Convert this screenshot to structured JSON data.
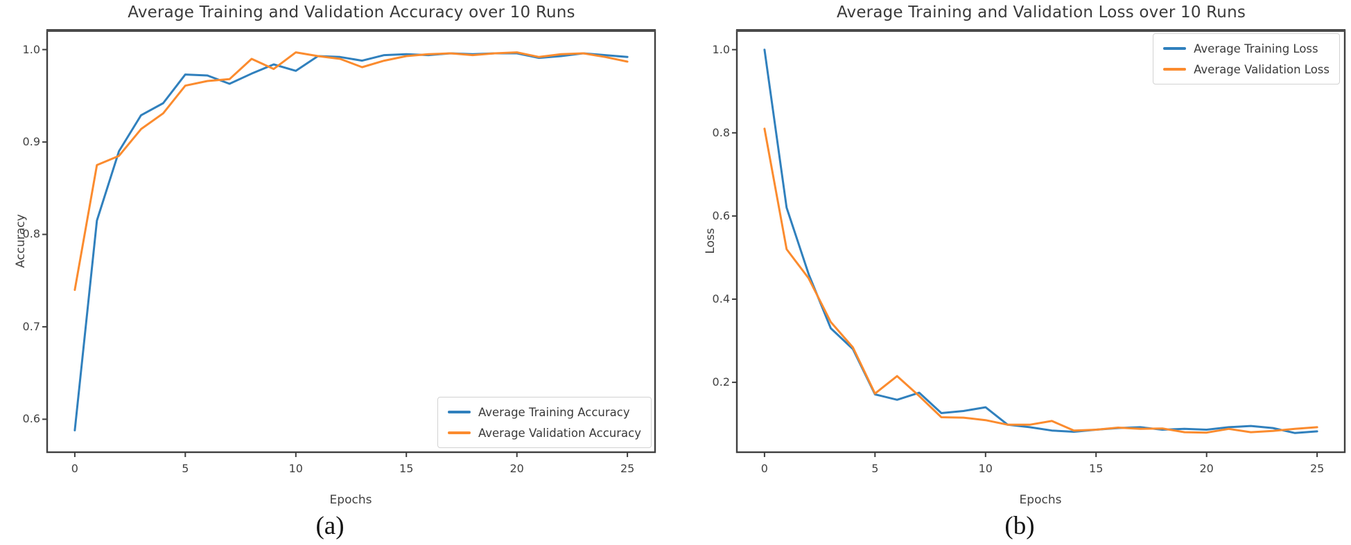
{
  "colors": {
    "training": "#3080bd",
    "validation": "#fb8b2e",
    "spine": "#3f3f3f",
    "spine_top": "#4a4a4a",
    "tick": "#3f3f3f"
  },
  "chart_data": [
    {
      "id": "accuracy",
      "type": "line",
      "title": "Average Training and Validation Accuracy over 10 Runs",
      "xlabel": "Epochs",
      "ylabel": "Accuracy",
      "caption": "(a)",
      "grid": false,
      "legend_position": "lower right",
      "xlim": [
        -1.25,
        26.25
      ],
      "ylim": [
        0.5643,
        1.0207
      ],
      "xticks": [
        0,
        5,
        10,
        15,
        20,
        25
      ],
      "yticks": [
        0.6,
        0.7,
        0.8,
        0.9,
        1.0
      ],
      "x": [
        0,
        1,
        2,
        3,
        4,
        5,
        6,
        7,
        8,
        9,
        10,
        11,
        12,
        13,
        14,
        15,
        16,
        17,
        18,
        19,
        20,
        21,
        22,
        23,
        24,
        25
      ],
      "series": [
        {
          "name": "Average Training Accuracy",
          "color_key": "training",
          "values": [
            0.588,
            0.815,
            0.89,
            0.929,
            0.942,
            0.973,
            0.972,
            0.963,
            0.974,
            0.984,
            0.977,
            0.993,
            0.992,
            0.988,
            0.994,
            0.995,
            0.994,
            0.996,
            0.995,
            0.996,
            0.996,
            0.991,
            0.993,
            0.996,
            0.994,
            0.992
          ]
        },
        {
          "name": "Average Validation Accuracy",
          "color_key": "validation",
          "values": [
            0.74,
            0.875,
            0.885,
            0.914,
            0.931,
            0.961,
            0.966,
            0.968,
            0.99,
            0.979,
            0.997,
            0.993,
            0.99,
            0.981,
            0.988,
            0.993,
            0.995,
            0.996,
            0.994,
            0.996,
            0.997,
            0.992,
            0.995,
            0.996,
            0.992,
            0.987
          ]
        }
      ]
    },
    {
      "id": "loss",
      "type": "line",
      "title": "Average Training and Validation Loss over 10 Runs",
      "xlabel": "Epochs",
      "ylabel": "Loss",
      "caption": "(b)",
      "grid": false,
      "legend_position": "upper right",
      "xlim": [
        -1.25,
        26.25
      ],
      "ylim": [
        0.0319,
        1.0461
      ],
      "xticks": [
        0,
        5,
        10,
        15,
        20,
        25
      ],
      "yticks": [
        0.2,
        0.4,
        0.6,
        0.8,
        1.0
      ],
      "x": [
        0,
        1,
        2,
        3,
        4,
        5,
        6,
        7,
        8,
        9,
        10,
        11,
        12,
        13,
        14,
        15,
        16,
        17,
        18,
        19,
        20,
        21,
        22,
        23,
        24,
        25
      ],
      "series": [
        {
          "name": "Average Training Loss",
          "color_key": "training",
          "values": [
            1.0,
            0.62,
            0.46,
            0.33,
            0.28,
            0.171,
            0.158,
            0.175,
            0.126,
            0.131,
            0.14,
            0.098,
            0.092,
            0.084,
            0.081,
            0.086,
            0.09,
            0.092,
            0.086,
            0.088,
            0.086,
            0.092,
            0.095,
            0.09,
            0.078,
            0.082
          ]
        },
        {
          "name": "Average Validation Loss",
          "color_key": "validation",
          "values": [
            0.81,
            0.52,
            0.45,
            0.345,
            0.284,
            0.173,
            0.215,
            0.167,
            0.116,
            0.115,
            0.109,
            0.098,
            0.098,
            0.107,
            0.084,
            0.086,
            0.091,
            0.088,
            0.089,
            0.08,
            0.079,
            0.088,
            0.08,
            0.083,
            0.088,
            0.092
          ]
        }
      ]
    }
  ]
}
